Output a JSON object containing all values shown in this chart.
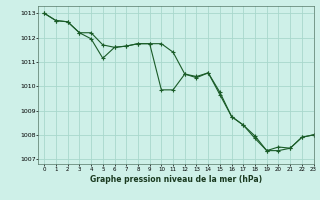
{
  "title": "Graphe pression niveau de la mer (hPa)",
  "background_color": "#cef0e8",
  "grid_color": "#a8d8cc",
  "line_color": "#1a5c28",
  "xlim": [
    -0.5,
    23
  ],
  "ylim": [
    1006.8,
    1013.3
  ],
  "yticks": [
    1007,
    1008,
    1009,
    1010,
    1011,
    1012,
    1013
  ],
  "xticks": [
    0,
    1,
    2,
    3,
    4,
    5,
    6,
    7,
    8,
    9,
    10,
    11,
    12,
    13,
    14,
    15,
    16,
    17,
    18,
    19,
    20,
    21,
    22,
    23
  ],
  "line1_x": [
    0,
    1,
    2,
    3,
    4,
    5,
    6,
    7,
    8,
    9,
    10,
    11,
    12,
    13,
    14,
    15,
    16,
    17,
    18,
    19,
    20,
    21,
    22,
    23
  ],
  "line1_y": [
    1013.0,
    1012.7,
    1012.65,
    1012.2,
    1012.2,
    1011.7,
    1011.6,
    1011.65,
    1011.75,
    1011.75,
    1011.75,
    1011.4,
    1010.5,
    1010.4,
    1010.55,
    1009.75,
    1008.75,
    1008.4,
    1007.85,
    1007.35,
    1007.5,
    1007.45,
    1007.9,
    1008.0
  ],
  "line2_x": [
    0,
    1,
    2,
    3,
    4,
    5,
    6,
    7,
    8,
    9,
    10,
    11,
    12,
    13,
    14,
    15,
    16,
    17,
    18,
    19,
    20,
    21,
    22,
    23
  ],
  "line2_y": [
    1013.0,
    1012.7,
    1012.65,
    1012.2,
    1011.95,
    1011.15,
    1011.6,
    1011.65,
    1011.75,
    1011.75,
    1009.85,
    1009.85,
    1010.5,
    1010.35,
    1010.55,
    1009.65,
    1008.75,
    1008.4,
    1007.95,
    1007.35,
    1007.35,
    1007.45,
    1007.9,
    1008.0
  ]
}
